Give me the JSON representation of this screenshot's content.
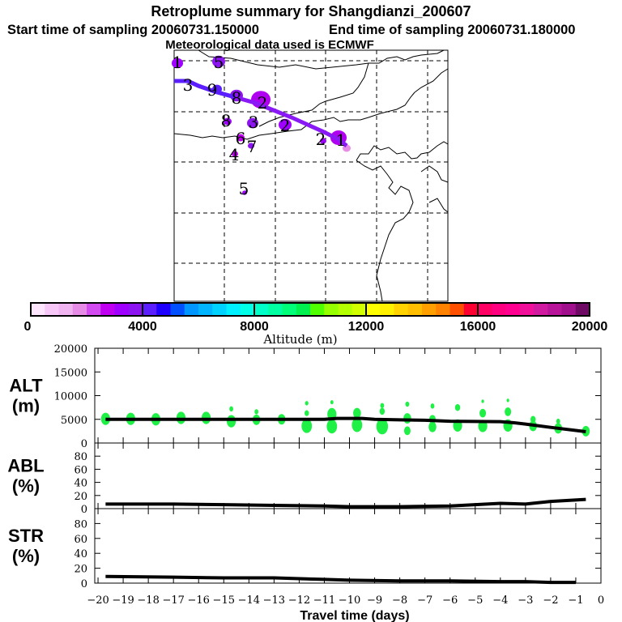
{
  "chart_data": {
    "type": "line",
    "title": "Retroplume summary for Shangdianzi_200607",
    "subtitle_start": "Start time of sampling 20060731.150000",
    "subtitle_end": "End time of sampling 20060731.180000",
    "subtitle_met": "Meteorological data used is ECMWF",
    "map": {
      "cluster_labels": [
        "1",
        "5",
        "3",
        "9",
        "8",
        "2",
        "8",
        "3",
        "6",
        "2",
        "4",
        "7",
        "5",
        "2",
        "1"
      ]
    },
    "colorbar": {
      "label": "Altitude (m)",
      "ticks": [
        "0",
        "4000",
        "8000",
        "12000",
        "16000",
        "20000"
      ],
      "range": [
        0,
        20000
      ],
      "colors": [
        "#ffe6ff",
        "#f7c8f7",
        "#f0b4f0",
        "#e68ce6",
        "#d24bf0",
        "#c000f0",
        "#a000ff",
        "#8c14f0",
        "#5a1eff",
        "#1e00ff",
        "#0050ff",
        "#0096ff",
        "#00b4ff",
        "#00d2ff",
        "#00f0ff",
        "#00ffe6",
        "#00ffc8",
        "#00ffa0",
        "#00ff78",
        "#00f050",
        "#50ff00",
        "#96ff00",
        "#b4ff00",
        "#d2ff00",
        "#ffff00",
        "#fff000",
        "#ffd200",
        "#ffbe00",
        "#ffa000",
        "#ff8200",
        "#ff5000",
        "#ff0032",
        "#ff0064",
        "#ff0080",
        "#ff0090",
        "#f0109a",
        "#d01aa0",
        "#b8149a",
        "#a0108c",
        "#6e0a64"
      ]
    },
    "xlabel": "Travel time (days)",
    "xlim": [
      -20.13,
      0
    ],
    "xticks": [
      -20,
      -19,
      -18,
      -17,
      -16,
      -15,
      -14,
      -13,
      -12,
      -11,
      -10,
      -9,
      -8,
      -7,
      -6,
      -5,
      -4,
      -3,
      -2,
      -1,
      0
    ],
    "xtick_labels": [
      "−20",
      "−19",
      "−18",
      "−17",
      "−16",
      "−15",
      "−14",
      "−13",
      "−12",
      "−11",
      "−10",
      "−9",
      "−8",
      "−7",
      "−6",
      "−5",
      "−4",
      "−3",
      "−2",
      "−1",
      "0"
    ],
    "panels": [
      {
        "id": "alt",
        "label1": "ALT",
        "label2": "(m)",
        "ylim": [
          0,
          20000
        ],
        "yticks": [
          0,
          5000,
          10000,
          15000,
          20000
        ],
        "ytick_labels": [
          "0",
          "5000",
          "10000",
          "15000",
          "20000"
        ],
        "line": {
          "x": [
            -19.7,
            -11,
            -10.5,
            -9.5,
            -9,
            -8,
            -7,
            -6,
            -4,
            -3.5,
            -3,
            -2,
            -0.6
          ],
          "y": [
            5000,
            5000,
            5200,
            5200,
            5000,
            4900,
            4800,
            4600,
            4500,
            4300,
            4000,
            3300,
            2400
          ]
        },
        "clusters": [
          {
            "x": -19.7,
            "y": 5100,
            "s": 3
          },
          {
            "x": -18.7,
            "y": 5100,
            "s": 3
          },
          {
            "x": -17.7,
            "y": 5000,
            "s": 3
          },
          {
            "x": -16.7,
            "y": 5300,
            "s": 3
          },
          {
            "x": -15.7,
            "y": 5300,
            "s": 3
          },
          {
            "x": -14.7,
            "y": 4600,
            "s": 3
          },
          {
            "x": -14.7,
            "y": 7200,
            "s": 1
          },
          {
            "x": -13.7,
            "y": 4900,
            "s": 2.5
          },
          {
            "x": -13.7,
            "y": 6600,
            "s": 1
          },
          {
            "x": -12.7,
            "y": 5000,
            "s": 2.5
          },
          {
            "x": -11.7,
            "y": 3600,
            "s": 3.5
          },
          {
            "x": -11.7,
            "y": 6300,
            "s": 1.2
          },
          {
            "x": -11.7,
            "y": 8400,
            "s": 0.8
          },
          {
            "x": -10.7,
            "y": 3500,
            "s": 3.5
          },
          {
            "x": -10.7,
            "y": 6100,
            "s": 3
          },
          {
            "x": -10.7,
            "y": 8600,
            "s": 0.7
          },
          {
            "x": -9.7,
            "y": 3800,
            "s": 3.5
          },
          {
            "x": -9.7,
            "y": 6300,
            "s": 2.5
          },
          {
            "x": -8.7,
            "y": 3500,
            "s": 4
          },
          {
            "x": -8.7,
            "y": 6700,
            "s": 1.5
          },
          {
            "x": -8.7,
            "y": 7900,
            "s": 1
          },
          {
            "x": -7.7,
            "y": 2600,
            "s": 2
          },
          {
            "x": -7.7,
            "y": 5200,
            "s": 2.5
          },
          {
            "x": -7.7,
            "y": 8200,
            "s": 1
          },
          {
            "x": -6.7,
            "y": 3400,
            "s": 2.5
          },
          {
            "x": -6.7,
            "y": 5000,
            "s": 2
          },
          {
            "x": -6.7,
            "y": 7800,
            "s": 1
          },
          {
            "x": -5.7,
            "y": 3700,
            "s": 3
          },
          {
            "x": -5.7,
            "y": 7500,
            "s": 1.5
          },
          {
            "x": -4.7,
            "y": 3600,
            "s": 3
          },
          {
            "x": -4.7,
            "y": 6300,
            "s": 2
          },
          {
            "x": -4.7,
            "y": 8800,
            "s": 0.5
          },
          {
            "x": -3.7,
            "y": 3700,
            "s": 3
          },
          {
            "x": -3.7,
            "y": 6600,
            "s": 2
          },
          {
            "x": -3.7,
            "y": 9000,
            "s": 0.5
          },
          {
            "x": -2.7,
            "y": 3600,
            "s": 2.5
          },
          {
            "x": -2.7,
            "y": 5000,
            "s": 1.5
          },
          {
            "x": -1.7,
            "y": 3100,
            "s": 2.5
          },
          {
            "x": -1.7,
            "y": 4600,
            "s": 1
          },
          {
            "x": -0.6,
            "y": 2500,
            "s": 2.5
          }
        ]
      },
      {
        "id": "abl",
        "label1": "ABL",
        "label2": "(%)",
        "ylim": [
          0,
          100
        ],
        "yticks": [
          0,
          20,
          40,
          60,
          80
        ],
        "ytick_labels": [
          "0",
          "20",
          "40",
          "60",
          "80"
        ],
        "line": {
          "x": [
            -19.7,
            -17,
            -15,
            -13,
            -11,
            -10,
            -8,
            -6,
            -5,
            -4,
            -3,
            -2,
            -0.6
          ],
          "y": [
            7,
            7,
            6,
            5,
            4,
            3,
            3,
            4,
            6,
            8,
            7,
            11,
            14
          ]
        }
      },
      {
        "id": "str",
        "label1": "STR",
        "label2": "(%)",
        "ylim": [
          0,
          100
        ],
        "yticks": [
          0,
          20,
          40,
          60,
          80
        ],
        "ytick_labels": [
          "0",
          "20",
          "40",
          "60",
          "80"
        ],
        "line": {
          "x": [
            -19.7,
            -17,
            -15,
            -13,
            -11,
            -10,
            -8,
            -6,
            -4,
            -3,
            -2,
            -1
          ],
          "y": [
            9,
            8,
            7,
            7,
            5,
            4,
            3,
            3,
            2,
            2,
            1,
            1
          ]
        }
      }
    ]
  }
}
